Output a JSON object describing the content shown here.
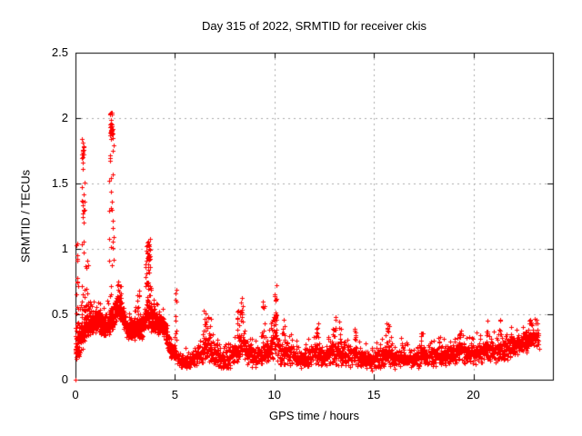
{
  "chart_data": {
    "type": "scatter",
    "title": "Day 315 of 2022, SRMTID for receiver ckis",
    "xlabel": "GPS time / hours",
    "ylabel": "SRMTID / TECUs",
    "xlim": [
      0,
      24
    ],
    "ylim": [
      0,
      2.5
    ],
    "xticks": [
      0,
      5,
      10,
      15,
      20
    ],
    "xtick_labels": [
      "0",
      "5",
      "10",
      "15",
      "20"
    ],
    "yticks": [
      0,
      0.5,
      1,
      1.5,
      2,
      2.5
    ],
    "ytick_labels": [
      "0",
      "0.5",
      "1",
      "1.5",
      "2",
      "2.5"
    ],
    "grid": true,
    "grid_color": "#a8a8a8",
    "axis_color": "#000000",
    "marker": {
      "glyph": "+",
      "color": "#ff0000",
      "size": 5
    },
    "legend": "none",
    "t_start": 0,
    "t_end": 23.3,
    "samples_per_hour": 120,
    "dense_until_hour": 5,
    "seed": 315,
    "envelope": [
      [
        0.0,
        0.08,
        0.45
      ],
      [
        0.25,
        0.18,
        0.48
      ],
      [
        0.5,
        0.28,
        0.52
      ],
      [
        0.8,
        0.35,
        0.55
      ],
      [
        1.1,
        0.35,
        0.55
      ],
      [
        1.45,
        0.3,
        0.5
      ],
      [
        1.8,
        0.32,
        0.6
      ],
      [
        2.1,
        0.45,
        0.68
      ],
      [
        2.35,
        0.4,
        0.6
      ],
      [
        2.65,
        0.28,
        0.45
      ],
      [
        3.0,
        0.3,
        0.5
      ],
      [
        3.3,
        0.3,
        0.48
      ],
      [
        3.6,
        0.35,
        0.68
      ],
      [
        3.85,
        0.35,
        0.6
      ],
      [
        4.15,
        0.35,
        0.52
      ],
      [
        4.5,
        0.3,
        0.48
      ],
      [
        4.75,
        0.16,
        0.3
      ],
      [
        5.0,
        0.12,
        0.28
      ],
      [
        5.3,
        0.07,
        0.2
      ],
      [
        5.9,
        0.08,
        0.22
      ],
      [
        6.3,
        0.1,
        0.3
      ],
      [
        6.55,
        0.12,
        0.38
      ],
      [
        6.9,
        0.1,
        0.3
      ],
      [
        7.3,
        0.06,
        0.22
      ],
      [
        7.8,
        0.08,
        0.26
      ],
      [
        8.1,
        0.12,
        0.35
      ],
      [
        8.35,
        0.15,
        0.45
      ],
      [
        8.7,
        0.1,
        0.3
      ],
      [
        9.1,
        0.08,
        0.26
      ],
      [
        9.45,
        0.1,
        0.33
      ],
      [
        9.8,
        0.12,
        0.36
      ],
      [
        10.05,
        0.14,
        0.42
      ],
      [
        10.35,
        0.1,
        0.32
      ],
      [
        10.8,
        0.1,
        0.3
      ],
      [
        11.3,
        0.07,
        0.24
      ],
      [
        11.8,
        0.08,
        0.26
      ],
      [
        12.1,
        0.1,
        0.32
      ],
      [
        12.5,
        0.08,
        0.25
      ],
      [
        12.9,
        0.1,
        0.33
      ],
      [
        13.2,
        0.1,
        0.32
      ],
      [
        13.6,
        0.08,
        0.28
      ],
      [
        14.0,
        0.1,
        0.3
      ],
      [
        14.4,
        0.08,
        0.25
      ],
      [
        14.9,
        0.06,
        0.22
      ],
      [
        15.3,
        0.08,
        0.25
      ],
      [
        15.7,
        0.1,
        0.3
      ],
      [
        16.1,
        0.07,
        0.24
      ],
      [
        16.6,
        0.08,
        0.25
      ],
      [
        17.1,
        0.08,
        0.26
      ],
      [
        17.5,
        0.1,
        0.3
      ],
      [
        18.0,
        0.08,
        0.26
      ],
      [
        18.5,
        0.1,
        0.28
      ],
      [
        19.0,
        0.1,
        0.3
      ],
      [
        19.4,
        0.12,
        0.32
      ],
      [
        19.8,
        0.1,
        0.28
      ],
      [
        20.3,
        0.12,
        0.32
      ],
      [
        20.8,
        0.12,
        0.33
      ],
      [
        21.3,
        0.12,
        0.34
      ],
      [
        21.8,
        0.14,
        0.34
      ],
      [
        22.3,
        0.17,
        0.37
      ],
      [
        22.8,
        0.2,
        0.42
      ],
      [
        23.1,
        0.22,
        0.42
      ],
      [
        23.3,
        0.2,
        0.38
      ]
    ],
    "spikes": [
      [
        0.08,
        0.05,
        1.05,
        8
      ],
      [
        0.38,
        0.1,
        1.85,
        26
      ],
      [
        0.6,
        0.08,
        0.95,
        8
      ],
      [
        1.8,
        0.1,
        2.05,
        34
      ],
      [
        2.2,
        0.08,
        0.75,
        6
      ],
      [
        3.15,
        0.07,
        0.68,
        7
      ],
      [
        3.65,
        0.15,
        1.1,
        28
      ],
      [
        5.05,
        0.05,
        0.72,
        9
      ],
      [
        6.5,
        0.08,
        0.56,
        9
      ],
      [
        6.75,
        0.06,
        0.5,
        6
      ],
      [
        8.2,
        0.06,
        0.55,
        7
      ],
      [
        8.35,
        0.08,
        0.65,
        12
      ],
      [
        9.45,
        0.07,
        0.6,
        9
      ],
      [
        9.85,
        0.05,
        0.5,
        5
      ],
      [
        10.05,
        0.08,
        0.73,
        14
      ],
      [
        10.45,
        0.06,
        0.46,
        5
      ],
      [
        12.15,
        0.07,
        0.44,
        7
      ],
      [
        13.0,
        0.08,
        0.5,
        9
      ],
      [
        13.3,
        0.05,
        0.45,
        5
      ],
      [
        14.05,
        0.05,
        0.42,
        5
      ],
      [
        15.7,
        0.07,
        0.43,
        7
      ],
      [
        16.4,
        0.05,
        0.32,
        4
      ],
      [
        17.4,
        0.06,
        0.38,
        5
      ],
      [
        18.3,
        0.05,
        0.33,
        4
      ],
      [
        19.3,
        0.05,
        0.36,
        5
      ],
      [
        20.7,
        0.05,
        0.46,
        5
      ],
      [
        21.3,
        0.05,
        0.48,
        5
      ],
      [
        22.85,
        0.08,
        0.46,
        7
      ]
    ],
    "points_extra": [
      [
        0.0,
        0.0
      ]
    ]
  }
}
